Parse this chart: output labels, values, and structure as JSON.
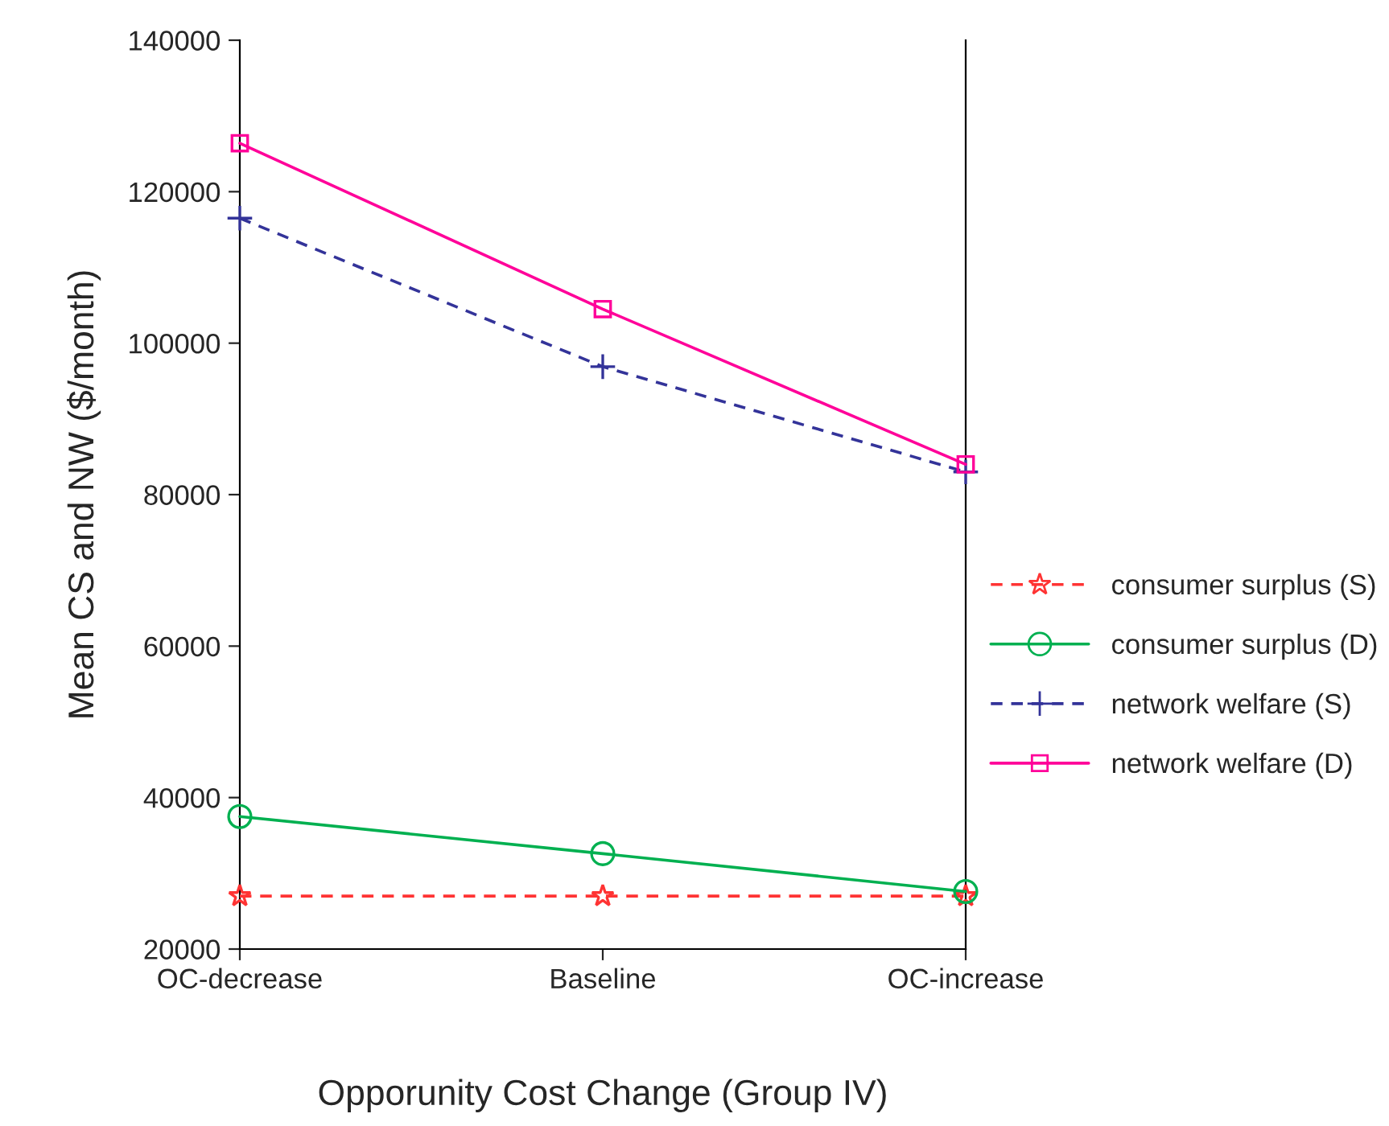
{
  "chart_data": {
    "type": "line",
    "xlabel": "Opporunity Cost Change (Group IV)",
    "ylabel": "Mean CS and NW ($/month)",
    "categories": [
      "OC-decrease",
      "Baseline",
      "OC-increase"
    ],
    "series": [
      {
        "name": "consumer surplus (S)",
        "color": "#ff3333",
        "values": [
          27000,
          27000,
          27000
        ],
        "marker": "star",
        "line_style": "dashed"
      },
      {
        "name": "consumer surplus (D)",
        "color": "#00b050",
        "values": [
          37500,
          32600,
          27600
        ],
        "marker": "circle",
        "line_style": "solid"
      },
      {
        "name": "network welfare (S)",
        "color": "#333399",
        "values": [
          116500,
          96900,
          83000
        ],
        "marker": "cross",
        "line_style": "dashed"
      },
      {
        "name": "network welfare (D)",
        "color": "#ff0099",
        "values": [
          126400,
          104500,
          84000
        ],
        "marker": "square",
        "line_style": "solid"
      }
    ],
    "ylim": [
      20000,
      140000
    ],
    "yticks": [
      20000,
      40000,
      60000,
      80000,
      100000,
      120000,
      140000
    ],
    "grid": false,
    "legend": "right"
  }
}
